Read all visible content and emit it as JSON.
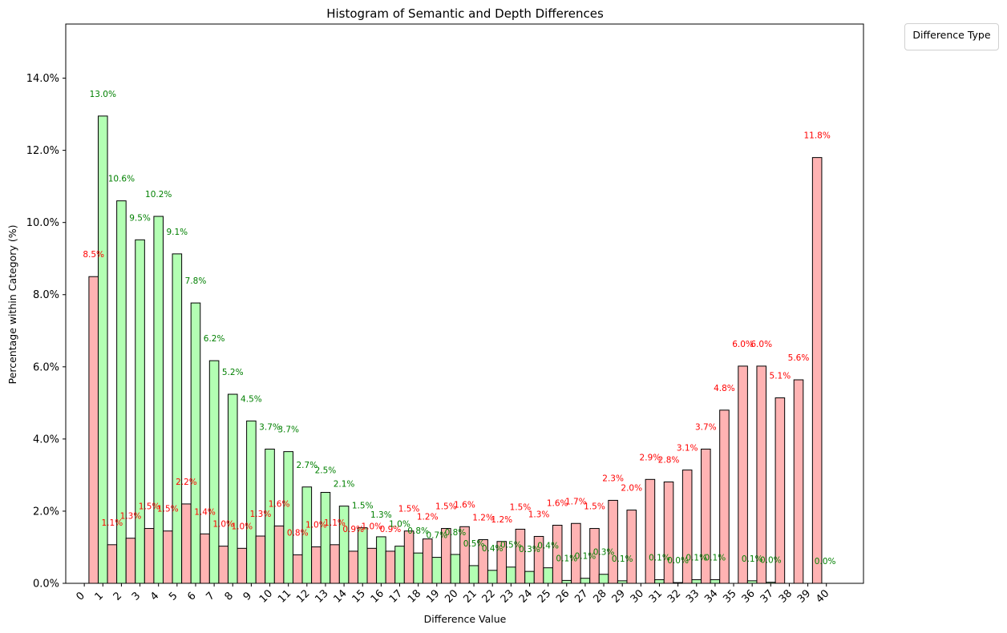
{
  "chart_data": {
    "type": "bar",
    "title": "Histogram of Semantic and Depth Differences",
    "xlabel": "Difference Value",
    "ylabel": "Percentage within Category (%)",
    "ylim": [
      0,
      15.5
    ],
    "yticks": [
      0,
      2,
      4,
      6,
      8,
      10,
      12,
      14
    ],
    "ytick_format": "percent_1dp",
    "xlim": [
      -1,
      42
    ],
    "xticks": [
      0,
      1,
      2,
      3,
      4,
      5,
      6,
      7,
      8,
      9,
      10,
      11,
      12,
      13,
      14,
      15,
      16,
      17,
      18,
      19,
      20,
      21,
      22,
      23,
      24,
      25,
      26,
      27,
      28,
      29,
      30,
      31,
      32,
      33,
      34,
      35,
      36,
      37,
      38,
      39,
      40
    ],
    "grid": false,
    "legend": {
      "title": "Difference Type",
      "placement": "outside-top-right",
      "entries": []
    },
    "colors": {
      "red": "#ffb3b3",
      "green": "#b3ffb3",
      "red_label": "#ff0000",
      "green_label": "#008000",
      "edge": "#000000"
    },
    "bars": [
      {
        "x": 0.5,
        "value": 8.5,
        "color": "red",
        "label": "8.5%"
      },
      {
        "x": 1.0,
        "value": 12.95,
        "color": "green",
        "label": "13.0%"
      },
      {
        "x": 1.5,
        "value": 1.07,
        "color": "red",
        "label": "1.1%"
      },
      {
        "x": 2.0,
        "value": 10.6,
        "color": "green",
        "label": "10.6%"
      },
      {
        "x": 2.5,
        "value": 1.25,
        "color": "red",
        "label": "1.3%"
      },
      {
        "x": 3.0,
        "value": 9.52,
        "color": "green",
        "label": "9.5%"
      },
      {
        "x": 3.5,
        "value": 1.52,
        "color": "red",
        "label": "1.5%"
      },
      {
        "x": 4.0,
        "value": 10.17,
        "color": "green",
        "label": "10.2%"
      },
      {
        "x": 4.5,
        "value": 1.45,
        "color": "red",
        "label": "1.5%"
      },
      {
        "x": 5.0,
        "value": 9.13,
        "color": "green",
        "label": "9.1%"
      },
      {
        "x": 5.5,
        "value": 2.2,
        "color": "red",
        "label": "2.2%"
      },
      {
        "x": 6.0,
        "value": 7.77,
        "color": "green",
        "label": "7.8%"
      },
      {
        "x": 6.5,
        "value": 1.37,
        "color": "red",
        "label": "1.4%"
      },
      {
        "x": 7.0,
        "value": 6.17,
        "color": "green",
        "label": "6.2%"
      },
      {
        "x": 7.5,
        "value": 1.03,
        "color": "red",
        "label": "1.0%"
      },
      {
        "x": 8.0,
        "value": 5.24,
        "color": "green",
        "label": "5.2%"
      },
      {
        "x": 8.5,
        "value": 0.97,
        "color": "red",
        "label": "1.0%"
      },
      {
        "x": 9.0,
        "value": 4.5,
        "color": "green",
        "label": "4.5%"
      },
      {
        "x": 9.5,
        "value": 1.31,
        "color": "red",
        "label": "1.3%"
      },
      {
        "x": 10.0,
        "value": 3.72,
        "color": "green",
        "label": "3.7%"
      },
      {
        "x": 10.5,
        "value": 1.59,
        "color": "red",
        "label": "1.6%"
      },
      {
        "x": 11.0,
        "value": 3.65,
        "color": "green",
        "label": "3.7%"
      },
      {
        "x": 11.5,
        "value": 0.79,
        "color": "red",
        "label": "0.8%"
      },
      {
        "x": 12.0,
        "value": 2.67,
        "color": "green",
        "label": "2.7%"
      },
      {
        "x": 12.5,
        "value": 1.01,
        "color": "red",
        "label": "1.0%"
      },
      {
        "x": 13.0,
        "value": 2.52,
        "color": "green",
        "label": "2.5%"
      },
      {
        "x": 13.5,
        "value": 1.07,
        "color": "red",
        "label": "1.1%"
      },
      {
        "x": 14.0,
        "value": 2.14,
        "color": "green",
        "label": "2.1%"
      },
      {
        "x": 14.5,
        "value": 0.89,
        "color": "red",
        "label": "0.9%"
      },
      {
        "x": 15.0,
        "value": 1.54,
        "color": "green",
        "label": "1.5%"
      },
      {
        "x": 15.5,
        "value": 0.97,
        "color": "red",
        "label": "1.0%"
      },
      {
        "x": 16.0,
        "value": 1.29,
        "color": "green",
        "label": "1.3%"
      },
      {
        "x": 16.5,
        "value": 0.89,
        "color": "red",
        "label": "0.9%"
      },
      {
        "x": 17.0,
        "value": 1.03,
        "color": "green",
        "label": "1.0%"
      },
      {
        "x": 17.5,
        "value": 1.45,
        "color": "red",
        "label": "1.5%"
      },
      {
        "x": 18.0,
        "value": 0.84,
        "color": "green",
        "label": "0.8%"
      },
      {
        "x": 18.5,
        "value": 1.23,
        "color": "red",
        "label": "1.2%"
      },
      {
        "x": 19.0,
        "value": 0.72,
        "color": "green",
        "label": "0.7%"
      },
      {
        "x": 19.5,
        "value": 1.52,
        "color": "red",
        "label": "1.5%"
      },
      {
        "x": 20.0,
        "value": 0.8,
        "color": "green",
        "label": "0.8%"
      },
      {
        "x": 20.5,
        "value": 1.57,
        "color": "red",
        "label": "1.6%"
      },
      {
        "x": 21.0,
        "value": 0.49,
        "color": "green",
        "label": "0.5%"
      },
      {
        "x": 21.5,
        "value": 1.21,
        "color": "red",
        "label": "1.2%"
      },
      {
        "x": 22.0,
        "value": 0.36,
        "color": "green",
        "label": "0.4%"
      },
      {
        "x": 22.5,
        "value": 1.16,
        "color": "red",
        "label": "1.2%"
      },
      {
        "x": 23.0,
        "value": 0.45,
        "color": "green",
        "label": "0.5%"
      },
      {
        "x": 23.5,
        "value": 1.5,
        "color": "red",
        "label": "1.5%"
      },
      {
        "x": 24.0,
        "value": 0.33,
        "color": "green",
        "label": "0.3%"
      },
      {
        "x": 24.5,
        "value": 1.3,
        "color": "red",
        "label": "1.3%"
      },
      {
        "x": 25.0,
        "value": 0.43,
        "color": "green",
        "label": "0.4%"
      },
      {
        "x": 25.5,
        "value": 1.61,
        "color": "red",
        "label": "1.6%"
      },
      {
        "x": 26.0,
        "value": 0.08,
        "color": "green",
        "label": "0.1%"
      },
      {
        "x": 26.5,
        "value": 1.66,
        "color": "red",
        "label": "1.7%"
      },
      {
        "x": 27.0,
        "value": 0.14,
        "color": "green",
        "label": "0.1%"
      },
      {
        "x": 27.5,
        "value": 1.52,
        "color": "red",
        "label": "1.5%"
      },
      {
        "x": 28.0,
        "value": 0.25,
        "color": "green",
        "label": "0.3%"
      },
      {
        "x": 28.5,
        "value": 2.3,
        "color": "red",
        "label": "2.3%"
      },
      {
        "x": 29.0,
        "value": 0.07,
        "color": "green",
        "label": "0.1%"
      },
      {
        "x": 29.5,
        "value": 2.03,
        "color": "red",
        "label": "2.0%"
      },
      {
        "x": 30.5,
        "value": 2.88,
        "color": "red",
        "label": "2.9%"
      },
      {
        "x": 31.0,
        "value": 0.1,
        "color": "green",
        "label": "0.1%"
      },
      {
        "x": 31.5,
        "value": 2.81,
        "color": "red",
        "label": "2.8%"
      },
      {
        "x": 32.0,
        "value": 0.02,
        "color": "green",
        "label": "0.0%"
      },
      {
        "x": 32.5,
        "value": 3.14,
        "color": "red",
        "label": "3.1%"
      },
      {
        "x": 33.0,
        "value": 0.1,
        "color": "green",
        "label": "0.1%"
      },
      {
        "x": 33.5,
        "value": 3.72,
        "color": "red",
        "label": "3.7%"
      },
      {
        "x": 34.0,
        "value": 0.1,
        "color": "green",
        "label": "0.1%"
      },
      {
        "x": 34.5,
        "value": 4.8,
        "color": "red",
        "label": "4.8%"
      },
      {
        "x": 35.5,
        "value": 6.02,
        "color": "red",
        "label": "6.0%"
      },
      {
        "x": 36.0,
        "value": 0.07,
        "color": "green",
        "label": "0.1%"
      },
      {
        "x": 36.5,
        "value": 6.02,
        "color": "red",
        "label": "6.0%"
      },
      {
        "x": 37.0,
        "value": 0.03,
        "color": "green",
        "label": "0.0%"
      },
      {
        "x": 37.5,
        "value": 5.14,
        "color": "red",
        "label": "5.1%"
      },
      {
        "x": 38.5,
        "value": 5.64,
        "color": "red",
        "label": "5.6%"
      },
      {
        "x": 39.5,
        "value": 11.8,
        "color": "red",
        "label": "11.8%"
      }
    ],
    "extra_labels": [
      {
        "x": 39.5,
        "value": 0.0,
        "color": "green",
        "label": "0.0%"
      }
    ]
  }
}
